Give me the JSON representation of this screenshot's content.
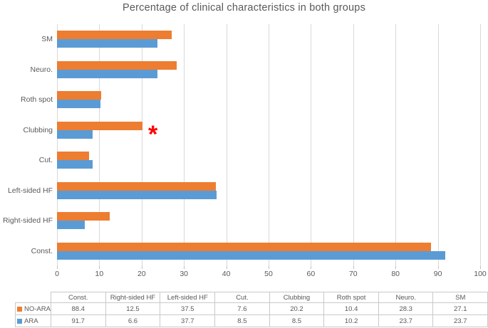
{
  "chart_data": {
    "type": "bar",
    "orientation": "horizontal",
    "title": "Percentage of clinical characteristics in both groups",
    "categories": [
      "SM",
      "Neuro.",
      "Roth spot",
      "Clubbing",
      "Cut.",
      "Left-sided HF",
      "Right-sided HF",
      "Const."
    ],
    "series": [
      {
        "name": "NO-ARA",
        "color": "#ED7D31",
        "values": [
          27.1,
          28.3,
          10.4,
          20.2,
          7.6,
          37.5,
          12.5,
          88.4
        ]
      },
      {
        "name": "ARA",
        "color": "#5B9BD5",
        "values": [
          23.7,
          23.7,
          10.2,
          8.5,
          8.5,
          37.7,
          6.6,
          91.7
        ]
      }
    ],
    "xlim": [
      0,
      100
    ],
    "x_ticks": [
      0,
      10,
      20,
      30,
      40,
      50,
      60,
      70,
      80,
      90,
      100
    ],
    "gridlines": true,
    "legend_position": "table-below",
    "annotation": {
      "text": "*",
      "color": "#FF0000",
      "category": "Clubbing",
      "series": "NO-ARA"
    },
    "style_colors": {
      "gridline": "#D9D9D9",
      "axis_text": "#595959",
      "title_text": "#595959",
      "table_border": "#C9C9C9"
    }
  },
  "table": {
    "corner_label": "",
    "columns": [
      "Const.",
      "Right-sided HF",
      "Left-sided HF",
      "Cut.",
      "Clubbing",
      "Roth spot",
      "Neuro.",
      "SM"
    ],
    "rows": [
      {
        "label": "NO-ARA",
        "swatch_color": "#ED7D31",
        "values": [
          "88.4",
          "12.5",
          "37.5",
          "7.6",
          "20.2",
          "10.4",
          "28.3",
          "27.1"
        ]
      },
      {
        "label": "ARA",
        "swatch_color": "#5B9BD5",
        "values": [
          "91.7",
          "6.6",
          "37.7",
          "8.5",
          "8.5",
          "10.2",
          "23.7",
          "23.7"
        ]
      }
    ]
  }
}
